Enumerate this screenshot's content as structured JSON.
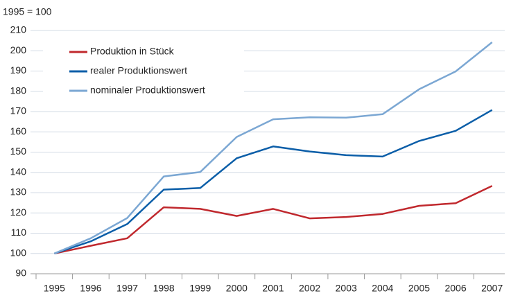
{
  "chart_data": {
    "type": "line",
    "ylabel": "1995 = 100",
    "categories": [
      "1995",
      "1996",
      "1997",
      "1998",
      "1999",
      "2000",
      "2001",
      "2002",
      "2003",
      "2004",
      "2005",
      "2006",
      "2007"
    ],
    "series": [
      {
        "name": "Produktion in Stück",
        "color": "#c0282d",
        "values": [
          100,
          103.8,
          107.5,
          122.8,
          122,
          118.5,
          122,
          117.3,
          118,
          119.5,
          123.5,
          124.8,
          133.3
        ]
      },
      {
        "name": "realer Produktionswert",
        "color": "#0b5ea8",
        "values": [
          100,
          106,
          114.5,
          131.5,
          132.3,
          147,
          152.8,
          150.3,
          148.5,
          147.8,
          155.5,
          160.5,
          170.8
        ]
      },
      {
        "name": "nominaler Produktionswert",
        "color": "#7ba7d3",
        "values": [
          100,
          107.5,
          117.5,
          138,
          140.2,
          157.5,
          166.2,
          167.2,
          167,
          168.7,
          181,
          189.8,
          204.2
        ]
      }
    ],
    "ylim": [
      90,
      210
    ],
    "yticks": [
      90,
      100,
      110,
      120,
      130,
      140,
      150,
      160,
      170,
      180,
      190,
      200,
      210
    ],
    "grid": true,
    "legend": "upper left"
  }
}
